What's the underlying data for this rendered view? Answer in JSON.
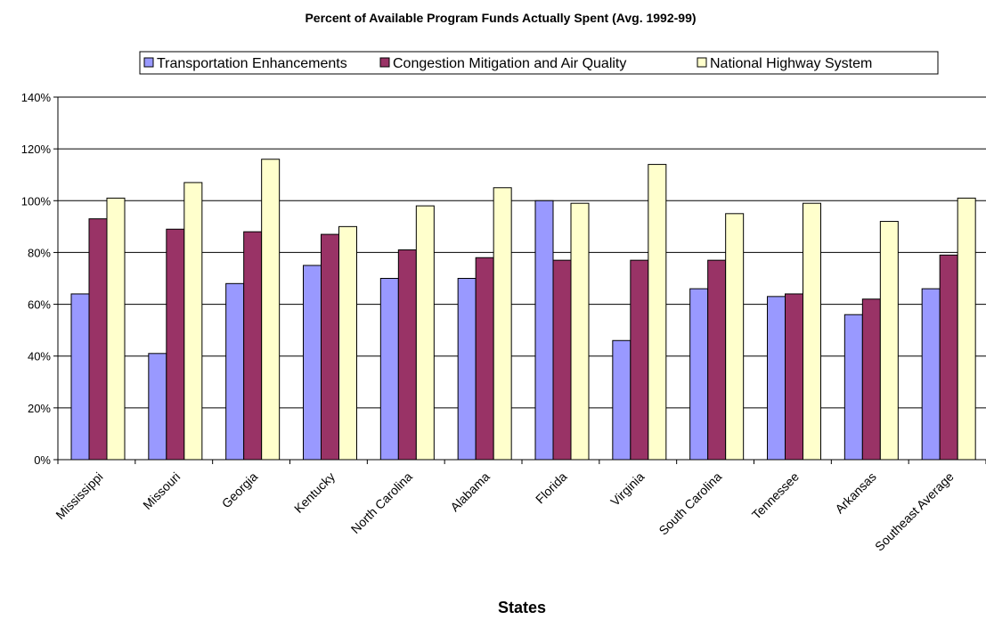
{
  "chart_data": {
    "type": "bar",
    "title": "Percent of Available Program Funds Actually Spent (Avg. 1992-99)",
    "xlabel": "States",
    "ylabel": "",
    "ylim": [
      0,
      140
    ],
    "y_ticks": [
      "0%",
      "20%",
      "40%",
      "60%",
      "80%",
      "100%",
      "120%",
      "140%"
    ],
    "y_tick_values": [
      0,
      20,
      40,
      60,
      80,
      100,
      120,
      140
    ],
    "grid": true,
    "legend_position": "top",
    "categories": [
      "Mississippi",
      "Missouri",
      "Georgia",
      "Kentucky",
      "North Carolina",
      "Alabama",
      "Florida",
      "Virginia",
      "South Carolina",
      "Tennessee",
      "Arkansas",
      "Southeast Average"
    ],
    "series": [
      {
        "name": "Transportation Enhancements",
        "color": "#9999ff",
        "values": [
          64,
          41,
          68,
          75,
          70,
          70,
          100,
          46,
          66,
          63,
          56,
          66
        ]
      },
      {
        "name": "Congestion Mitigation and Air Quality",
        "color": "#993366",
        "values": [
          93,
          89,
          88,
          87,
          81,
          78,
          77,
          77,
          77,
          64,
          62,
          79
        ]
      },
      {
        "name": "National Highway System",
        "color": "#ffffcc",
        "values": [
          101,
          107,
          116,
          90,
          98,
          105,
          99,
          114,
          95,
          99,
          92,
          101
        ]
      }
    ]
  }
}
